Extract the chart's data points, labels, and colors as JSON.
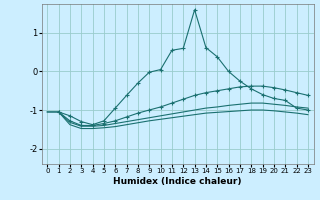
{
  "xlabel": "Humidex (Indice chaleur)",
  "bg_color": "#cceeff",
  "grid_color": "#99cccc",
  "line_color": "#1a7070",
  "xlim": [
    -0.5,
    23.5
  ],
  "ylim": [
    -2.4,
    1.75
  ],
  "xticks": [
    0,
    1,
    2,
    3,
    4,
    5,
    6,
    7,
    8,
    9,
    10,
    11,
    12,
    13,
    14,
    15,
    16,
    17,
    18,
    19,
    20,
    21,
    22,
    23
  ],
  "yticks": [
    -2,
    -1,
    0,
    1
  ],
  "series1_x": [
    1,
    2,
    3,
    4,
    5,
    6,
    7,
    8,
    9,
    10,
    11,
    12,
    13,
    14,
    15,
    16,
    17,
    18,
    19,
    20,
    21,
    22,
    23
  ],
  "series1_y": [
    -1.05,
    -1.15,
    -1.3,
    -1.38,
    -1.28,
    -0.95,
    -0.62,
    -0.3,
    -0.02,
    0.05,
    0.55,
    0.6,
    1.6,
    0.62,
    0.38,
    0.0,
    -0.25,
    -0.45,
    -0.6,
    -0.7,
    -0.75,
    -0.95,
    -1.0
  ],
  "series2_x": [
    1,
    2,
    3,
    4,
    5,
    6,
    7,
    8,
    9,
    10,
    11,
    12,
    13,
    14,
    15,
    16,
    17,
    18,
    19,
    20,
    21,
    22,
    23
  ],
  "series2_y": [
    -1.05,
    -1.28,
    -1.4,
    -1.4,
    -1.35,
    -1.28,
    -1.18,
    -1.08,
    -1.0,
    -0.92,
    -0.82,
    -0.72,
    -0.62,
    -0.55,
    -0.5,
    -0.45,
    -0.4,
    -0.38,
    -0.38,
    -0.42,
    -0.48,
    -0.55,
    -0.62
  ],
  "series3_x": [
    0,
    1,
    2,
    3,
    4,
    5,
    6,
    7,
    8,
    9,
    10,
    11,
    12,
    13,
    14,
    15,
    16,
    17,
    18,
    19,
    20,
    21,
    22,
    23
  ],
  "series3_y": [
    -1.05,
    -1.05,
    -1.32,
    -1.42,
    -1.42,
    -1.4,
    -1.35,
    -1.3,
    -1.25,
    -1.2,
    -1.15,
    -1.1,
    -1.05,
    -1.0,
    -0.95,
    -0.92,
    -0.88,
    -0.85,
    -0.82,
    -0.82,
    -0.85,
    -0.88,
    -0.92,
    -0.95
  ],
  "series4_x": [
    0,
    1,
    2,
    3,
    4,
    5,
    6,
    7,
    8,
    9,
    10,
    11,
    12,
    13,
    14,
    15,
    16,
    17,
    18,
    19,
    20,
    21,
    22,
    23
  ],
  "series4_y": [
    -1.05,
    -1.05,
    -1.38,
    -1.48,
    -1.48,
    -1.46,
    -1.43,
    -1.38,
    -1.33,
    -1.28,
    -1.24,
    -1.2,
    -1.16,
    -1.12,
    -1.08,
    -1.06,
    -1.04,
    -1.02,
    -1.0,
    -1.0,
    -1.02,
    -1.05,
    -1.08,
    -1.12
  ]
}
